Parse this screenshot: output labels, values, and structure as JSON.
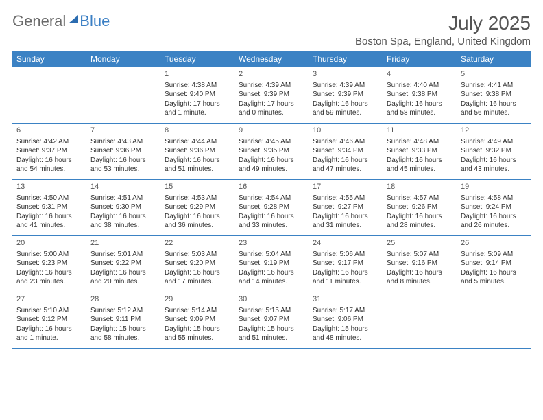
{
  "brand": {
    "general": "General",
    "blue": "Blue"
  },
  "title": "July 2025",
  "location": "Boston Spa, England, United Kingdom",
  "colors": {
    "header_bg": "#3b82c4",
    "header_text": "#ffffff",
    "border": "#3b82c4",
    "logo_gray": "#6a6a6a",
    "logo_blue": "#3b7fc4",
    "text": "#333333"
  },
  "weekdays": [
    "Sunday",
    "Monday",
    "Tuesday",
    "Wednesday",
    "Thursday",
    "Friday",
    "Saturday"
  ],
  "weeks": [
    [
      null,
      null,
      {
        "n": "1",
        "sr": "4:38 AM",
        "ss": "9:40 PM",
        "dl": "17 hours and 1 minute."
      },
      {
        "n": "2",
        "sr": "4:39 AM",
        "ss": "9:39 PM",
        "dl": "17 hours and 0 minutes."
      },
      {
        "n": "3",
        "sr": "4:39 AM",
        "ss": "9:39 PM",
        "dl": "16 hours and 59 minutes."
      },
      {
        "n": "4",
        "sr": "4:40 AM",
        "ss": "9:38 PM",
        "dl": "16 hours and 58 minutes."
      },
      {
        "n": "5",
        "sr": "4:41 AM",
        "ss": "9:38 PM",
        "dl": "16 hours and 56 minutes."
      }
    ],
    [
      {
        "n": "6",
        "sr": "4:42 AM",
        "ss": "9:37 PM",
        "dl": "16 hours and 54 minutes."
      },
      {
        "n": "7",
        "sr": "4:43 AM",
        "ss": "9:36 PM",
        "dl": "16 hours and 53 minutes."
      },
      {
        "n": "8",
        "sr": "4:44 AM",
        "ss": "9:36 PM",
        "dl": "16 hours and 51 minutes."
      },
      {
        "n": "9",
        "sr": "4:45 AM",
        "ss": "9:35 PM",
        "dl": "16 hours and 49 minutes."
      },
      {
        "n": "10",
        "sr": "4:46 AM",
        "ss": "9:34 PM",
        "dl": "16 hours and 47 minutes."
      },
      {
        "n": "11",
        "sr": "4:48 AM",
        "ss": "9:33 PM",
        "dl": "16 hours and 45 minutes."
      },
      {
        "n": "12",
        "sr": "4:49 AM",
        "ss": "9:32 PM",
        "dl": "16 hours and 43 minutes."
      }
    ],
    [
      {
        "n": "13",
        "sr": "4:50 AM",
        "ss": "9:31 PM",
        "dl": "16 hours and 41 minutes."
      },
      {
        "n": "14",
        "sr": "4:51 AM",
        "ss": "9:30 PM",
        "dl": "16 hours and 38 minutes."
      },
      {
        "n": "15",
        "sr": "4:53 AM",
        "ss": "9:29 PM",
        "dl": "16 hours and 36 minutes."
      },
      {
        "n": "16",
        "sr": "4:54 AM",
        "ss": "9:28 PM",
        "dl": "16 hours and 33 minutes."
      },
      {
        "n": "17",
        "sr": "4:55 AM",
        "ss": "9:27 PM",
        "dl": "16 hours and 31 minutes."
      },
      {
        "n": "18",
        "sr": "4:57 AM",
        "ss": "9:26 PM",
        "dl": "16 hours and 28 minutes."
      },
      {
        "n": "19",
        "sr": "4:58 AM",
        "ss": "9:24 PM",
        "dl": "16 hours and 26 minutes."
      }
    ],
    [
      {
        "n": "20",
        "sr": "5:00 AM",
        "ss": "9:23 PM",
        "dl": "16 hours and 23 minutes."
      },
      {
        "n": "21",
        "sr": "5:01 AM",
        "ss": "9:22 PM",
        "dl": "16 hours and 20 minutes."
      },
      {
        "n": "22",
        "sr": "5:03 AM",
        "ss": "9:20 PM",
        "dl": "16 hours and 17 minutes."
      },
      {
        "n": "23",
        "sr": "5:04 AM",
        "ss": "9:19 PM",
        "dl": "16 hours and 14 minutes."
      },
      {
        "n": "24",
        "sr": "5:06 AM",
        "ss": "9:17 PM",
        "dl": "16 hours and 11 minutes."
      },
      {
        "n": "25",
        "sr": "5:07 AM",
        "ss": "9:16 PM",
        "dl": "16 hours and 8 minutes."
      },
      {
        "n": "26",
        "sr": "5:09 AM",
        "ss": "9:14 PM",
        "dl": "16 hours and 5 minutes."
      }
    ],
    [
      {
        "n": "27",
        "sr": "5:10 AM",
        "ss": "9:12 PM",
        "dl": "16 hours and 1 minute."
      },
      {
        "n": "28",
        "sr": "5:12 AM",
        "ss": "9:11 PM",
        "dl": "15 hours and 58 minutes."
      },
      {
        "n": "29",
        "sr": "5:14 AM",
        "ss": "9:09 PM",
        "dl": "15 hours and 55 minutes."
      },
      {
        "n": "30",
        "sr": "5:15 AM",
        "ss": "9:07 PM",
        "dl": "15 hours and 51 minutes."
      },
      {
        "n": "31",
        "sr": "5:17 AM",
        "ss": "9:06 PM",
        "dl": "15 hours and 48 minutes."
      },
      null,
      null
    ]
  ],
  "labels": {
    "sunrise": "Sunrise:",
    "sunset": "Sunset:",
    "daylight": "Daylight:"
  }
}
